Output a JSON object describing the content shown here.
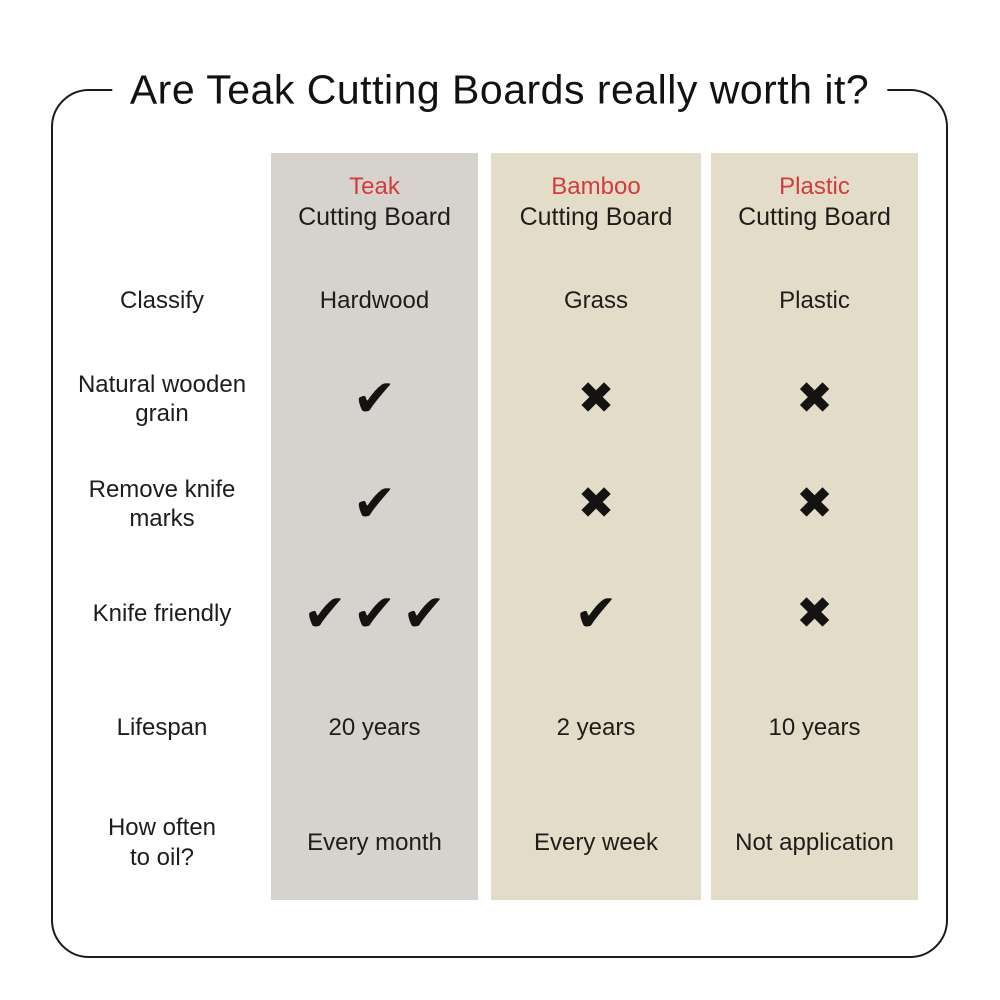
{
  "title": "Are Teak Cutting Boards really worth it?",
  "colors": {
    "background": "#ffffff",
    "border": "#1b1b1b",
    "teak_column_bg": "#d6d2cd",
    "bamboo_column_bg": "#e3dcc9",
    "plastic_column_bg": "#e3dcc9",
    "accent_red": "#d23c3c",
    "text": "#1f1d1a"
  },
  "row_labels": [
    "Classify",
    "Natural wooden\ngrain",
    "Remove knife\nmarks",
    "Knife friendly",
    "Lifespan",
    "How often\nto oil?"
  ],
  "columns": [
    {
      "name": "Teak",
      "subtitle": "Cutting Board",
      "cells": [
        "Hardwood",
        "✔",
        "✔",
        "✔✔✔",
        "20 years",
        "Every month"
      ]
    },
    {
      "name": "Bamboo",
      "subtitle": "Cutting Board",
      "cells": [
        "Grass",
        "✖",
        "✖",
        "✔",
        "2 years",
        "Every week"
      ]
    },
    {
      "name": "Plastic",
      "subtitle": "Cutting Board",
      "cells": [
        "Plastic",
        "✖",
        "✖",
        "✖",
        "10 years",
        "Not application"
      ]
    }
  ],
  "chart_data": {
    "type": "table",
    "title": "Are Teak Cutting Boards really worth it?",
    "columns": [
      "Teak Cutting Board",
      "Bamboo Cutting Board",
      "Plastic Cutting Board"
    ],
    "rows": [
      {
        "label": "Classify",
        "values": [
          "Hardwood",
          "Grass",
          "Plastic"
        ]
      },
      {
        "label": "Natural wooden grain",
        "values": [
          "✓",
          "✗",
          "✗"
        ]
      },
      {
        "label": "Remove knife marks",
        "values": [
          "✓",
          "✗",
          "✗"
        ]
      },
      {
        "label": "Knife friendly",
        "values": [
          "✓✓✓",
          "✓",
          "✗"
        ]
      },
      {
        "label": "Lifespan",
        "values": [
          "20 years",
          "2 years",
          "10 years"
        ]
      },
      {
        "label": "How often to oil?",
        "values": [
          "Every month",
          "Every week",
          "Not application"
        ]
      }
    ],
    "legend_position": "none",
    "grid": false
  }
}
